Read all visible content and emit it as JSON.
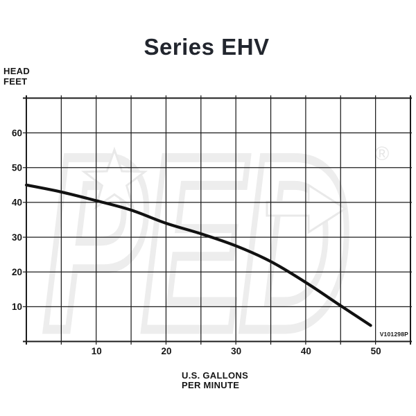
{
  "title": "Series EHV",
  "y_axis_label": {
    "line1": "HEAD",
    "line2": "FEET"
  },
  "x_axis_label": {
    "line1": "U.S. GALLONS",
    "line2": "PER MINUTE"
  },
  "part_number": "V101298P",
  "watermark": {
    "text": "PED",
    "registered_mark": "®",
    "color": "#ededed"
  },
  "colors": {
    "background": "#ffffff",
    "grid": "#1c1c1c",
    "border": "#1c1c1c",
    "curve": "#111111",
    "text": "#161616",
    "title": "#22262e",
    "watermark": "#ededed"
  },
  "chart_data": {
    "type": "line",
    "title": "Series EHV",
    "xlabel": "U.S. GALLONS PER MINUTE",
    "ylabel": "HEAD FEET",
    "xlim": [
      0,
      55
    ],
    "ylim": [
      0,
      70
    ],
    "x_grid_step": 5,
    "y_grid_step": 10,
    "x_tick_labels": [
      10,
      20,
      30,
      40,
      50
    ],
    "y_tick_labels": [
      10,
      20,
      30,
      40,
      50,
      60
    ],
    "grid": true,
    "legend": "none",
    "annotations": [
      "V101298P"
    ],
    "series": [
      {
        "name": "EHV performance curve",
        "points": [
          [
            0,
            45
          ],
          [
            5,
            43
          ],
          [
            10,
            40.5
          ],
          [
            15,
            37.8
          ],
          [
            20,
            34
          ],
          [
            25,
            31
          ],
          [
            30,
            27.5
          ],
          [
            35,
            23
          ],
          [
            40,
            17
          ],
          [
            45,
            10.3
          ],
          [
            49.3,
            4.6
          ]
        ]
      }
    ]
  }
}
